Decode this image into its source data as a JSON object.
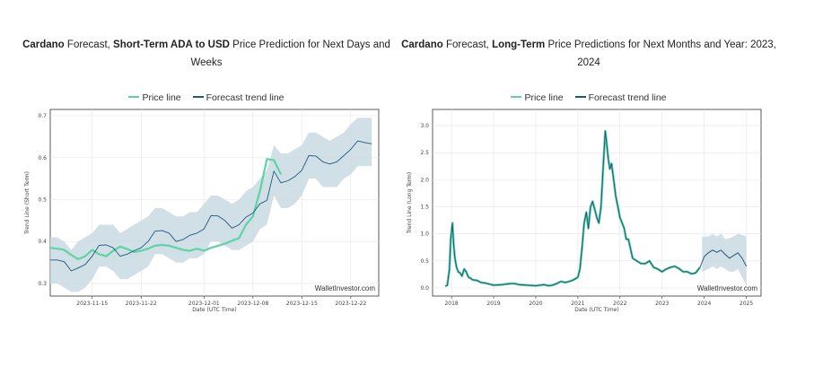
{
  "colors": {
    "price_line": "#5dd3a6",
    "forecast_line": "#1f5a7e",
    "band_fill": "#c9d9e2",
    "legend_price_swatch_under": "#f08a5d"
  },
  "left": {
    "title_parts": [
      {
        "text": "Cardano",
        "bold": true
      },
      {
        "text": " Forecast, ",
        "bold": false
      },
      {
        "text": "Short-Term ADA to USD",
        "bold": true
      },
      {
        "text": " Price Prediction for Next Days and Weeks",
        "bold": false
      }
    ],
    "legend": {
      "price": "Price line",
      "forecast": "Forecast trend line"
    },
    "watermark": "WalletInvestor.com",
    "chart_data": {
      "type": "line",
      "xlabel": "Date (UTC Time)",
      "ylabel": "Trend Line (Short Term)",
      "x_ticks": [
        "2023-11-15",
        "2023-11-22",
        "2023-12-01",
        "2023-12-08",
        "2023-12-15",
        "2023-12-22"
      ],
      "x_tick_index": [
        6,
        13,
        22,
        29,
        36,
        43
      ],
      "y_ticks": [
        0.3,
        0.4,
        0.5,
        0.6,
        0.7
      ],
      "ylim": [
        0.27,
        0.715
      ],
      "x_count": 48,
      "grid": true,
      "legend_position": "top",
      "series": [
        {
          "name": "Price line",
          "values": [
            0.385,
            0.383,
            0.38,
            0.368,
            0.358,
            0.365,
            0.38,
            0.37,
            0.365,
            0.378,
            0.388,
            0.382,
            0.375,
            0.378,
            0.383,
            0.39,
            0.392,
            0.39,
            0.385,
            0.38,
            0.378,
            0.383,
            0.378,
            0.385,
            0.39,
            0.395,
            0.402,
            0.408,
            0.44,
            0.46,
            0.52,
            0.597,
            0.594,
            0.56
          ]
        },
        {
          "name": "Forecast trend line",
          "values": [
            0.356,
            0.356,
            0.352,
            0.33,
            0.337,
            0.345,
            0.365,
            0.391,
            0.392,
            0.385,
            0.365,
            0.37,
            0.378,
            0.385,
            0.4,
            0.425,
            0.426,
            0.42,
            0.4,
            0.405,
            0.415,
            0.42,
            0.43,
            0.462,
            0.461,
            0.45,
            0.432,
            0.44,
            0.458,
            0.468,
            0.49,
            0.498,
            0.568,
            0.54,
            0.545,
            0.555,
            0.57,
            0.605,
            0.604,
            0.59,
            0.585,
            0.59,
            0.605,
            0.62,
            0.64,
            0.636,
            0.633
          ]
        }
      ],
      "band": {
        "upper": [
          0.41,
          0.41,
          0.4,
          0.38,
          0.4,
          0.41,
          0.42,
          0.44,
          0.44,
          0.44,
          0.42,
          0.43,
          0.44,
          0.45,
          0.46,
          0.48,
          0.48,
          0.47,
          0.46,
          0.46,
          0.47,
          0.47,
          0.49,
          0.51,
          0.51,
          0.5,
          0.49,
          0.5,
          0.52,
          0.53,
          0.55,
          0.57,
          0.63,
          0.61,
          0.61,
          0.62,
          0.63,
          0.66,
          0.66,
          0.65,
          0.64,
          0.65,
          0.66,
          0.68,
          0.695,
          0.695,
          0.695
        ],
        "lower": [
          0.3,
          0.3,
          0.29,
          0.28,
          0.28,
          0.29,
          0.31,
          0.34,
          0.34,
          0.33,
          0.31,
          0.31,
          0.32,
          0.33,
          0.34,
          0.37,
          0.37,
          0.36,
          0.35,
          0.35,
          0.36,
          0.36,
          0.37,
          0.4,
          0.4,
          0.39,
          0.38,
          0.38,
          0.39,
          0.4,
          0.43,
          0.44,
          0.51,
          0.48,
          0.48,
          0.49,
          0.51,
          0.55,
          0.55,
          0.53,
          0.53,
          0.53,
          0.55,
          0.56,
          0.58,
          0.58,
          0.58
        ]
      }
    }
  },
  "right": {
    "title_parts": [
      {
        "text": "Cardano",
        "bold": true
      },
      {
        "text": " Forecast, ",
        "bold": false
      },
      {
        "text": "Long-Term",
        "bold": true
      },
      {
        "text": " Price Predictions for Next Months and Year: 2023, 2024",
        "bold": false
      }
    ],
    "legend": {
      "price": "Price line",
      "forecast": "Forecast trend line"
    },
    "watermark": "WalletInvestor.com",
    "chart_data": {
      "type": "line",
      "xlabel": "Date (UTC Time)",
      "ylabel": "Trend Line (Long Term)",
      "x_ticks": [
        "2018",
        "2019",
        "2020",
        "2021",
        "2022",
        "2023",
        "2024",
        "2025"
      ],
      "x_tick_values": [
        2018,
        2019,
        2020,
        2021,
        2022,
        2023,
        2024,
        2025
      ],
      "xlim": [
        2017.55,
        2025.35
      ],
      "y_ticks": [
        0.0,
        0.5,
        1.0,
        1.5,
        2.0,
        2.5,
        3.0
      ],
      "ylim": [
        -0.15,
        3.3
      ],
      "grid": true,
      "legend_position": "top",
      "series": [
        {
          "name": "Price line",
          "x": [
            2017.85,
            2017.9,
            2017.95,
            2017.98,
            2018.02,
            2018.05,
            2018.08,
            2018.12,
            2018.16,
            2018.2,
            2018.25,
            2018.3,
            2018.35,
            2018.4,
            2018.45,
            2018.5,
            2018.6,
            2018.7,
            2018.8,
            2018.9,
            2019.0,
            2019.2,
            2019.4,
            2019.5,
            2019.6,
            2019.8,
            2020.0,
            2020.1,
            2020.2,
            2020.3,
            2020.4,
            2020.5,
            2020.6,
            2020.7,
            2020.8,
            2020.9,
            2021.0,
            2021.05,
            2021.1,
            2021.15,
            2021.2,
            2021.25,
            2021.3,
            2021.35,
            2021.4,
            2021.45,
            2021.5,
            2021.55,
            2021.6,
            2021.65,
            2021.68,
            2021.72,
            2021.76,
            2021.8,
            2021.85,
            2021.9,
            2021.95,
            2022.0,
            2022.05,
            2022.1,
            2022.15,
            2022.2,
            2022.3,
            2022.4,
            2022.5,
            2022.6,
            2022.7,
            2022.8,
            2022.9,
            2023.0,
            2023.1,
            2023.2,
            2023.3,
            2023.4,
            2023.5,
            2023.6,
            2023.7,
            2023.8,
            2023.9
          ],
          "y": [
            0.03,
            0.05,
            0.35,
            0.9,
            1.2,
            0.8,
            0.55,
            0.38,
            0.3,
            0.28,
            0.22,
            0.35,
            0.3,
            0.2,
            0.18,
            0.15,
            0.14,
            0.1,
            0.09,
            0.07,
            0.05,
            0.06,
            0.08,
            0.08,
            0.06,
            0.05,
            0.04,
            0.05,
            0.06,
            0.04,
            0.05,
            0.08,
            0.12,
            0.1,
            0.12,
            0.15,
            0.2,
            0.35,
            0.75,
            1.2,
            1.4,
            1.1,
            1.5,
            1.6,
            1.45,
            1.3,
            1.2,
            1.5,
            2.2,
            2.9,
            2.7,
            2.4,
            2.2,
            2.3,
            2.0,
            1.7,
            1.5,
            1.3,
            1.2,
            1.1,
            0.9,
            0.9,
            0.55,
            0.5,
            0.45,
            0.45,
            0.5,
            0.38,
            0.35,
            0.3,
            0.35,
            0.38,
            0.4,
            0.36,
            0.3,
            0.3,
            0.26,
            0.28,
            0.38
          ]
        },
        {
          "name": "Forecast trend line",
          "x": [
            2017.85,
            2017.9,
            2017.95,
            2017.98,
            2018.02,
            2018.05,
            2018.08,
            2018.12,
            2018.16,
            2018.2,
            2018.25,
            2018.3,
            2018.35,
            2018.4,
            2018.45,
            2018.5,
            2018.6,
            2018.7,
            2018.8,
            2018.9,
            2019.0,
            2019.2,
            2019.4,
            2019.5,
            2019.6,
            2019.8,
            2020.0,
            2020.1,
            2020.2,
            2020.3,
            2020.4,
            2020.5,
            2020.6,
            2020.7,
            2020.8,
            2020.9,
            2021.0,
            2021.05,
            2021.1,
            2021.15,
            2021.2,
            2021.25,
            2021.3,
            2021.35,
            2021.4,
            2021.45,
            2021.5,
            2021.55,
            2021.6,
            2021.65,
            2021.68,
            2021.72,
            2021.76,
            2021.8,
            2021.85,
            2021.9,
            2021.95,
            2022.0,
            2022.05,
            2022.1,
            2022.15,
            2022.2,
            2022.3,
            2022.4,
            2022.5,
            2022.6,
            2022.7,
            2022.8,
            2022.9,
            2023.0,
            2023.1,
            2023.2,
            2023.3,
            2023.4,
            2023.5,
            2023.6,
            2023.7,
            2023.8,
            2023.9,
            2024.0,
            2024.1,
            2024.2,
            2024.3,
            2024.4,
            2024.5,
            2024.6,
            2024.7,
            2024.8,
            2024.9,
            2025.0
          ],
          "y": [
            0.03,
            0.05,
            0.35,
            0.9,
            1.2,
            0.8,
            0.55,
            0.38,
            0.3,
            0.28,
            0.22,
            0.35,
            0.3,
            0.2,
            0.18,
            0.15,
            0.14,
            0.1,
            0.09,
            0.07,
            0.05,
            0.06,
            0.08,
            0.08,
            0.06,
            0.05,
            0.04,
            0.05,
            0.06,
            0.04,
            0.05,
            0.08,
            0.12,
            0.1,
            0.12,
            0.15,
            0.2,
            0.35,
            0.75,
            1.2,
            1.4,
            1.1,
            1.5,
            1.6,
            1.45,
            1.3,
            1.2,
            1.5,
            2.2,
            2.9,
            2.7,
            2.4,
            2.2,
            2.3,
            2.0,
            1.7,
            1.5,
            1.3,
            1.2,
            1.1,
            0.9,
            0.9,
            0.55,
            0.5,
            0.45,
            0.45,
            0.5,
            0.38,
            0.35,
            0.3,
            0.35,
            0.38,
            0.4,
            0.36,
            0.3,
            0.3,
            0.26,
            0.28,
            0.38,
            0.58,
            0.65,
            0.7,
            0.66,
            0.7,
            0.62,
            0.55,
            0.6,
            0.65,
            0.55,
            0.4
          ]
        }
      ],
      "band": {
        "x": [
          2023.95,
          2024.1,
          2024.2,
          2024.3,
          2024.4,
          2024.5,
          2024.6,
          2024.7,
          2024.8,
          2024.9,
          2025.0
        ],
        "upper": [
          0.95,
          0.95,
          1.0,
          0.95,
          1.0,
          0.9,
          0.92,
          0.95,
          1.0,
          0.98,
          0.95
        ],
        "lower": [
          0.3,
          0.35,
          0.4,
          0.35,
          0.4,
          0.35,
          0.3,
          0.3,
          0.35,
          0.2,
          0.05
        ]
      }
    }
  }
}
